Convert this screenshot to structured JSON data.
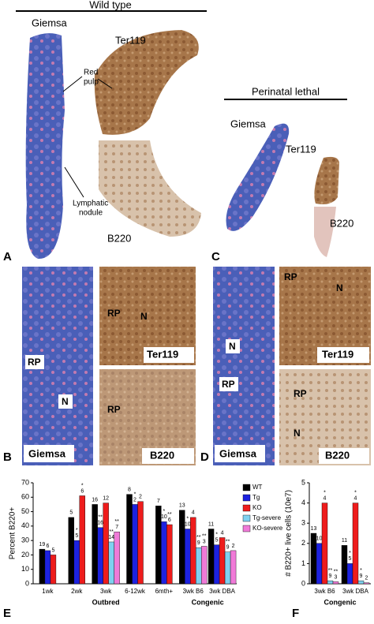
{
  "panel_a": {
    "letter": "A",
    "title": "Wild type",
    "stains": [
      "Giemsa",
      "Ter119",
      "B220"
    ],
    "annotation_red_pulp": [
      "Red",
      "pulp"
    ],
    "annotation_nodule": [
      "Lymphatic",
      "nodule"
    ]
  },
  "panel_c": {
    "letter": "C",
    "title": "Perinatal lethal",
    "stains": [
      "Giemsa",
      "Ter119",
      "B220"
    ]
  },
  "panel_b": {
    "letter": "B",
    "stains": [
      "Giemsa",
      "Ter119",
      "B220"
    ],
    "marks": [
      "RP",
      "N",
      "RP",
      "N",
      "RP"
    ]
  },
  "panel_d": {
    "letter": "D",
    "stains": [
      "Giemsa",
      "Ter119",
      "B220"
    ],
    "marks": [
      "N",
      "RP",
      "RP",
      "N",
      "RP",
      "N"
    ]
  },
  "chart_data": [
    {
      "type": "bar",
      "letter": "E",
      "y_label": "Percent B220+",
      "categories": [
        "1wk",
        "2wk",
        "3wk",
        "6-12wk",
        "6mth+",
        "3wk B6",
        "3wk DBA"
      ],
      "group_labels": [
        "Outbred",
        "Congenic"
      ],
      "ylim": [
        0,
        70
      ],
      "yticks": [
        0,
        10,
        20,
        30,
        40,
        50,
        60,
        70
      ],
      "series": [
        {
          "name": "WT",
          "color": "#000000",
          "values": [
            24,
            46,
            55,
            62,
            54,
            51,
            38
          ],
          "n": [
            "19",
            "5",
            "16",
            "8",
            "7",
            "13",
            "11"
          ],
          "sig": [
            null,
            null,
            null,
            null,
            null,
            null,
            null
          ]
        },
        {
          "name": "Tg",
          "color": "#1d22e0",
          "values": [
            23,
            30,
            39,
            55,
            43,
            38,
            27
          ],
          "n": [
            "6",
            "5",
            "16",
            "2",
            "10",
            "10",
            "5"
          ],
          "sig": [
            null,
            "*",
            "**",
            "*",
            "*",
            "*",
            "*"
          ]
        },
        {
          "name": "KO",
          "color": "#ee1c1c",
          "values": [
            20,
            61,
            56,
            57,
            41,
            46,
            32
          ],
          "n": [
            "5",
            "6",
            "12",
            "2",
            "6",
            "4",
            "4"
          ],
          "sig": [
            null,
            "*",
            null,
            null,
            "**",
            null,
            null
          ]
        },
        {
          "name": "Tg-severe",
          "color": "#7fd1f0",
          "values": [
            null,
            null,
            29,
            null,
            null,
            25,
            22
          ],
          "n": [
            null,
            null,
            "14",
            null,
            null,
            "9",
            "9"
          ],
          "sig": [
            null,
            null,
            "**",
            null,
            null,
            "**",
            "**"
          ]
        },
        {
          "name": "KO-severe",
          "color": "#f07ad8",
          "values": [
            null,
            null,
            36,
            null,
            null,
            26,
            23
          ],
          "n": [
            null,
            null,
            "7",
            null,
            null,
            "3",
            "2"
          ],
          "sig": [
            null,
            null,
            "**",
            null,
            null,
            "**",
            null
          ]
        }
      ]
    },
    {
      "type": "bar",
      "letter": "F",
      "y_label": "# B220+ live cells (10e7)",
      "categories": [
        "3wk B6",
        "3wk DBA"
      ],
      "group_labels": [
        "Congenic"
      ],
      "ylim": [
        0,
        5
      ],
      "yticks": [
        0,
        1,
        2,
        3,
        4,
        5
      ],
      "series": [
        {
          "name": "WT",
          "color": "#000000",
          "values": [
            2.5,
            1.9
          ],
          "n": [
            "13",
            "11"
          ],
          "sig": [
            null,
            null
          ]
        },
        {
          "name": "Tg",
          "color": "#1d22e0",
          "values": [
            2.0,
            1.0
          ],
          "n": [
            "10",
            "5"
          ],
          "sig": [
            null,
            "*"
          ]
        },
        {
          "name": "KO",
          "color": "#ee1c1c",
          "values": [
            4.0,
            4.0
          ],
          "n": [
            "4",
            "4"
          ],
          "sig": [
            "*",
            "*"
          ]
        },
        {
          "name": "Tg-severe",
          "color": "#7fd1f0",
          "values": [
            0.15,
            0.15
          ],
          "n": [
            "9",
            "9"
          ],
          "sig": [
            "**",
            "*"
          ]
        },
        {
          "name": "KO-severe",
          "color": "#f07ad8",
          "values": [
            0.1,
            0.05
          ],
          "n": [
            "3",
            "2"
          ],
          "sig": [
            "**",
            null
          ]
        }
      ]
    }
  ]
}
